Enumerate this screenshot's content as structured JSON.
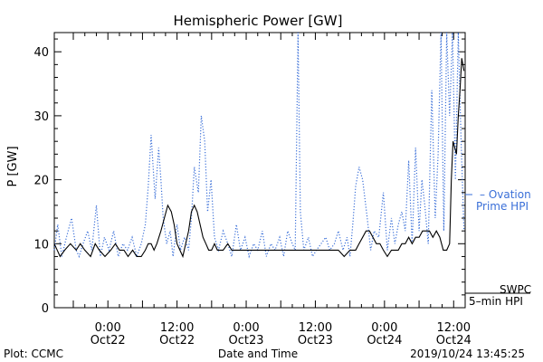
{
  "chart_data": {
    "type": "line",
    "title": "Hemispheric Power [GW]",
    "ylabel": "P [GW]",
    "xlabel": "Date and Time",
    "ylim": [
      0,
      43
    ],
    "yticks": [
      0,
      10,
      20,
      30,
      40
    ],
    "xticks": [
      {
        "time": "0:00",
        "date": "Oct22",
        "hours": 0
      },
      {
        "time": "12:00",
        "date": "Oct22",
        "hours": 12
      },
      {
        "time": "0:00",
        "date": "Oct23",
        "hours": 24
      },
      {
        "time": "12:00",
        "date": "Oct23",
        "hours": 36
      },
      {
        "time": "0:00",
        "date": "Oct24",
        "hours": 48
      },
      {
        "time": "12:00",
        "date": "Oct24",
        "hours": 60
      }
    ],
    "xlim_hours": [
      -9.3,
      62.0
    ],
    "x_units": "hours from 2019-10-22 0:00",
    "series": [
      {
        "name": "Ovation Prime HPI",
        "style": "dotted",
        "color": "#3a6fd8",
        "x": [
          -9.3,
          -8.7,
          -8.0,
          -7.2,
          -6.3,
          -5.5,
          -5.0,
          -4.3,
          -3.5,
          -2.8,
          -2.0,
          -1.3,
          -0.6,
          0.2,
          1.0,
          1.8,
          2.6,
          3.4,
          4.2,
          5.0,
          5.8,
          6.5,
          7.0,
          7.5,
          8.2,
          8.8,
          9.2,
          9.6,
          10.2,
          10.8,
          11.3,
          12.0,
          12.6,
          13.3,
          14.0,
          14.5,
          15.0,
          15.7,
          16.2,
          16.8,
          17.3,
          17.9,
          18.5,
          19.2,
          20.0,
          20.8,
          21.5,
          22.3,
          23.0,
          23.8,
          24.5,
          25.3,
          26.0,
          26.8,
          27.5,
          28.3,
          29.0,
          29.8,
          30.5,
          31.2,
          32.0,
          32.5,
          33.0,
          33.4,
          34.0,
          34.8,
          35.5,
          36.2,
          37.0,
          37.8,
          38.5,
          39.3,
          40.0,
          40.8,
          41.5,
          42.0,
          42.5,
          43.0,
          43.6,
          44.2,
          45.0,
          45.6,
          46.2,
          47.0,
          47.8,
          48.5,
          49.2,
          49.8,
          50.4,
          51.0,
          51.6,
          52.2,
          52.8,
          53.4,
          54.0,
          54.5,
          55.0,
          55.6,
          56.2,
          56.8,
          57.3,
          57.8,
          58.3,
          58.8,
          59.3,
          59.8,
          60.3,
          60.8,
          61.3,
          61.8
        ],
        "y": [
          9,
          13,
          8,
          11,
          14,
          9,
          8,
          10,
          12,
          9,
          16,
          8,
          11,
          9,
          12,
          8,
          10,
          9,
          11,
          8,
          10,
          13,
          19,
          27,
          17,
          25,
          20,
          14,
          10,
          12,
          8,
          13,
          9,
          11,
          9,
          14,
          22,
          18,
          30,
          26,
          15,
          20,
          11,
          9,
          12,
          10,
          8,
          13,
          9,
          11,
          8,
          10,
          9,
          12,
          8,
          10,
          9,
          11,
          8,
          12,
          10,
          9,
          43,
          15,
          9,
          11,
          8,
          9,
          10,
          11,
          9,
          10,
          12,
          9,
          11,
          8,
          13,
          19,
          22,
          20,
          14,
          9,
          12,
          11,
          18,
          9,
          14,
          10,
          13,
          15,
          12,
          23,
          10,
          25,
          12,
          20,
          16,
          10,
          34,
          14,
          24,
          43,
          12,
          43,
          30,
          43,
          20,
          43,
          26,
          12
        ],
        "peak_times": [
          "2019-10-23 09:30",
          "2019-10-24 12:00"
        ]
      },
      {
        "name": "SWPC 5-min HPI",
        "style": "solid",
        "color": "#000000",
        "x": [
          -9.3,
          -8.3,
          -7.5,
          -6.5,
          -5.5,
          -4.8,
          -4.0,
          -3.0,
          -2.2,
          -1.5,
          -0.5,
          0.5,
          1.3,
          2.0,
          2.8,
          3.5,
          4.3,
          5.0,
          5.8,
          6.5,
          7.0,
          7.5,
          8.0,
          8.5,
          9.2,
          9.8,
          10.4,
          11.0,
          11.5,
          12.0,
          12.5,
          13.0,
          13.5,
          14.0,
          14.5,
          15.0,
          15.5,
          16.0,
          16.5,
          17.0,
          17.5,
          18.0,
          18.5,
          19.0,
          19.5,
          20.0,
          20.8,
          21.5,
          22.5,
          23.5,
          24.5,
          25.5,
          26.5,
          28.0,
          29.5,
          31.0,
          32.5,
          34.0,
          35.5,
          37.0,
          38.5,
          40.0,
          41.0,
          42.0,
          43.0,
          43.6,
          44.2,
          44.8,
          45.4,
          46.0,
          46.6,
          47.2,
          47.8,
          48.5,
          49.2,
          49.8,
          50.4,
          51.0,
          51.6,
          52.2,
          52.8,
          53.4,
          54.0,
          54.6,
          55.2,
          55.8,
          56.4,
          57.0,
          57.6,
          58.2,
          58.8,
          59.3,
          59.6,
          59.9,
          60.2,
          60.5,
          60.8,
          61.1,
          61.4,
          61.8
        ],
        "y": [
          10,
          8,
          9,
          10,
          9,
          10,
          9,
          8,
          10,
          9,
          8,
          9,
          10,
          9,
          9,
          8,
          9,
          8,
          8,
          9,
          10,
          10,
          9,
          10,
          12,
          14,
          16,
          15,
          13,
          10,
          9,
          8,
          10,
          12,
          15,
          16,
          15,
          13,
          11,
          10,
          9,
          9,
          10,
          9,
          9,
          9,
          10,
          9,
          9,
          9,
          9,
          9,
          9,
          9,
          9,
          9,
          9,
          9,
          9,
          9,
          9,
          9,
          8,
          9,
          9,
          10,
          11,
          12,
          12,
          11,
          10,
          10,
          9,
          8,
          9,
          9,
          9,
          10,
          10,
          11,
          10,
          11,
          11,
          12,
          12,
          12,
          11,
          12,
          11,
          9,
          9,
          10,
          20,
          26,
          25,
          24,
          30,
          34,
          39,
          37
        ]
      }
    ]
  },
  "legend": {
    "ovation": {
      "label_line1": "– Ovation",
      "label_line2": "Prime HPI",
      "color": "#3a6fd8"
    },
    "swpc": {
      "label_line1": "SWPC",
      "label_line2": "5–min HPI",
      "color": "#000000"
    }
  },
  "footer": {
    "left": "Plot: CCMC",
    "center": "Date and Time",
    "right": "2019/10/24 13:45:25"
  }
}
